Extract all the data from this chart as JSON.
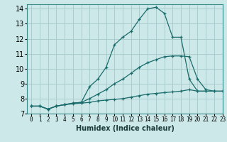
{
  "xlabel": "Humidex (Indice chaleur)",
  "bg_color": "#cce8e8",
  "grid_color": "#aacccc",
  "line_color": "#1a6b6b",
  "xlim": [
    -0.5,
    23
  ],
  "ylim": [
    7,
    14.3
  ],
  "xticks": [
    0,
    1,
    2,
    3,
    4,
    5,
    6,
    7,
    8,
    9,
    10,
    11,
    12,
    13,
    14,
    15,
    16,
    17,
    18,
    19,
    20,
    21,
    22,
    23
  ],
  "yticks": [
    7,
    8,
    9,
    10,
    11,
    12,
    13,
    14
  ],
  "series": [
    {
      "x": [
        0,
        1,
        2,
        3,
        4,
        5,
        6,
        7,
        8,
        9,
        10,
        11,
        12,
        13,
        14,
        15,
        16,
        17,
        18,
        19,
        20,
        21,
        22,
        23
      ],
      "y": [
        7.5,
        7.5,
        7.3,
        7.5,
        7.6,
        7.65,
        7.7,
        7.75,
        7.85,
        7.9,
        7.95,
        8.0,
        8.1,
        8.2,
        8.3,
        8.35,
        8.4,
        8.45,
        8.5,
        8.6,
        8.5,
        8.5,
        8.5,
        8.5
      ]
    },
    {
      "x": [
        0,
        1,
        2,
        3,
        4,
        5,
        6,
        7,
        8,
        9,
        10,
        11,
        12,
        13,
        14,
        15,
        16,
        17,
        18,
        19,
        20,
        21,
        22,
        23
      ],
      "y": [
        7.5,
        7.5,
        7.3,
        7.5,
        7.6,
        7.7,
        7.75,
        8.0,
        8.3,
        8.6,
        9.0,
        9.3,
        9.7,
        10.1,
        10.4,
        10.6,
        10.8,
        10.85,
        10.85,
        10.8,
        9.3,
        8.6,
        8.5,
        8.5
      ]
    },
    {
      "x": [
        0,
        1,
        2,
        3,
        4,
        5,
        6,
        7,
        8,
        9,
        10,
        11,
        12,
        13,
        14,
        15,
        16,
        17,
        18,
        19,
        20,
        21
      ],
      "y": [
        7.5,
        7.5,
        7.3,
        7.5,
        7.6,
        7.7,
        7.75,
        8.8,
        9.3,
        10.1,
        11.6,
        12.1,
        12.5,
        13.3,
        14.0,
        14.1,
        13.7,
        12.1,
        12.1,
        9.3,
        8.5,
        8.5
      ]
    }
  ]
}
